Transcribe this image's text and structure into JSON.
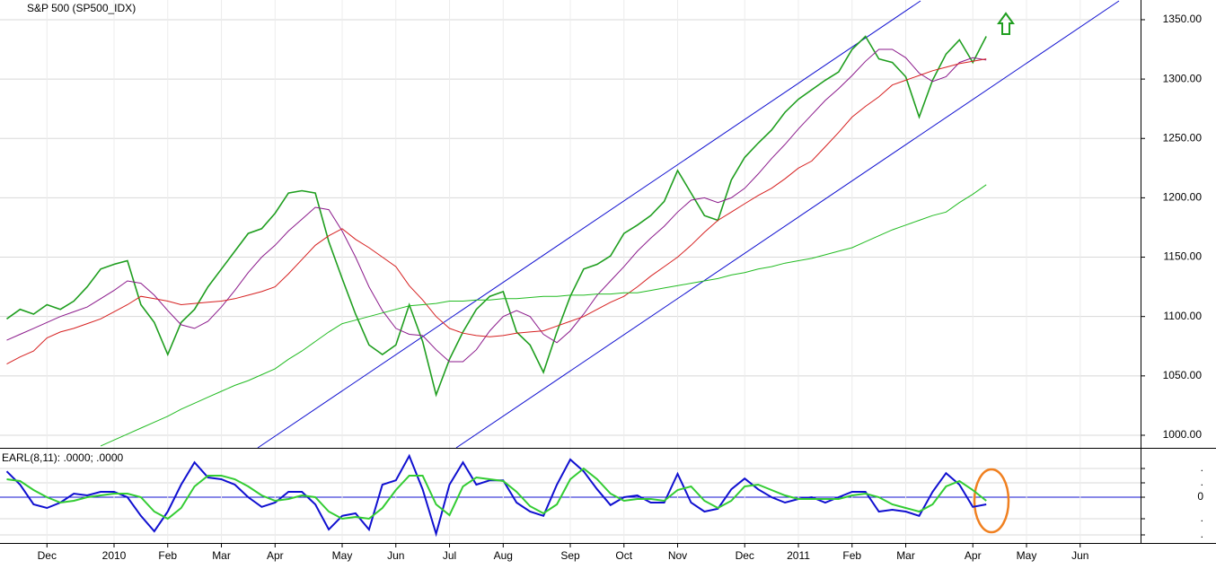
{
  "chart_data": [
    {
      "type": "line",
      "title": "S&P 500 (SP500_IDX)",
      "ylim": [
        989.4,
        1366.6
      ],
      "yticks": [
        {
          "value": 1000,
          "label": "1000.00"
        },
        {
          "value": 1050,
          "label": "1050.00"
        },
        {
          "value": 1100,
          "label": "1100.00"
        },
        {
          "value": 1150,
          "label": "1150.00"
        },
        {
          "value": 1200,
          "label": "1200.00"
        },
        {
          "value": 1250,
          "label": "1250.00"
        },
        {
          "value": 1300,
          "label": "1300.00"
        },
        {
          "value": 1350,
          "label": "1350.00"
        }
      ],
      "grid": true,
      "series": [
        {
          "color": "#1f9e1f",
          "values": [
            1098,
            1106,
            1102,
            1110,
            1106,
            1113,
            1125,
            1140,
            1144,
            1147,
            1110,
            1095,
            1068,
            1095,
            1106,
            1125,
            1140,
            1155,
            1170,
            1174,
            1187,
            1204,
            1206,
            1204,
            1163,
            1132,
            1102,
            1076,
            1068,
            1076,
            1110,
            1079,
            1034,
            1064,
            1087,
            1106,
            1117,
            1121,
            1087,
            1076,
            1053,
            1087,
            1117,
            1140,
            1144,
            1151,
            1170,
            1177,
            1185,
            1197,
            1223,
            1204,
            1185,
            1181,
            1215,
            1234,
            1246,
            1257,
            1272,
            1283,
            1291,
            1299,
            1306,
            1325,
            1336,
            1317,
            1314,
            1302,
            1268,
            1299,
            1321,
            1333,
            1314,
            1336,
            null,
            null,
            null,
            null,
            null,
            null,
            null,
            null,
            null,
            null,
            null
          ]
        },
        {
          "color": "#8b1a8b",
          "values": [
            1080,
            1085,
            1090,
            1095,
            1100,
            1104,
            1108,
            1115,
            1122,
            1130,
            1128,
            1118,
            1105,
            1093,
            1090,
            1096,
            1108,
            1122,
            1137,
            1150,
            1160,
            1172,
            1182,
            1192,
            1190,
            1172,
            1150,
            1125,
            1105,
            1090,
            1085,
            1084,
            1072,
            1062,
            1062,
            1072,
            1088,
            1100,
            1105,
            1100,
            1085,
            1078,
            1088,
            1102,
            1118,
            1130,
            1142,
            1155,
            1166,
            1176,
            1188,
            1198,
            1200,
            1196,
            1200,
            1208,
            1220,
            1233,
            1245,
            1258,
            1270,
            1282,
            1292,
            1303,
            1315,
            1325,
            1325,
            1318,
            1305,
            1298,
            1302,
            1314,
            1318,
            1316,
            null,
            null,
            null,
            null,
            null,
            null,
            null,
            null,
            null,
            null,
            null
          ]
        },
        {
          "color": "#d62020",
          "values": [
            1060,
            1066,
            1071,
            1082,
            1087,
            1090,
            1094,
            1098,
            1104,
            1110,
            1117,
            1115,
            1113,
            1110,
            1111,
            1112,
            1113,
            1115,
            1118,
            1121,
            1125,
            1136,
            1148,
            1160,
            1168,
            1174,
            1165,
            1158,
            1150,
            1142,
            1126,
            1114,
            1100,
            1090,
            1086,
            1084,
            1083,
            1084,
            1086,
            1087,
            1088,
            1092,
            1096,
            1100,
            1106,
            1112,
            1117,
            1125,
            1134,
            1142,
            1150,
            1160,
            1171,
            1181,
            1188,
            1195,
            1202,
            1208,
            1216,
            1225,
            1231,
            1243,
            1255,
            1268,
            1277,
            1285,
            1295,
            1299,
            1303,
            1307,
            1310,
            1313,
            1315,
            1317,
            null,
            null,
            null,
            null,
            null,
            null,
            null,
            null,
            null,
            null,
            null
          ]
        },
        {
          "color": "#22bb22",
          "values": [
            null,
            null,
            null,
            null,
            null,
            null,
            null,
            991,
            996,
            1001,
            1006,
            1011,
            1016,
            1022,
            1027,
            1032,
            1037,
            1042,
            1046,
            1051,
            1056,
            1064,
            1071,
            1079,
            1087,
            1094,
            1097,
            1100,
            1103,
            1106,
            1109,
            1110,
            1111,
            1113,
            1113,
            1114,
            1114,
            1115,
            1115,
            1116,
            1117,
            1117,
            1118,
            1118,
            1119,
            1119,
            1120,
            1120,
            1122,
            1124,
            1126,
            1128,
            1130,
            1132,
            1135,
            1137,
            1140,
            1142,
            1145,
            1147,
            1149,
            1152,
            1155,
            1158,
            1163,
            1168,
            1173,
            1177,
            1181,
            1185,
            1188,
            1196,
            1203,
            1211,
            null,
            null,
            null,
            null,
            null,
            null,
            null,
            null,
            null,
            null,
            null
          ]
        }
      ]
    },
    {
      "type": "line",
      "title": "EARL(8,11): .0000; .0000",
      "ylim": [
        -1.275,
        1.35
      ],
      "yticks": [
        {
          "value": 0.8,
          "label": "."
        },
        {
          "value": 0.4,
          "label": "."
        },
        0,
        {
          "value": -0.6,
          "label": "."
        },
        {
          "value": -1.05,
          "label": "."
        }
      ],
      "grid": true,
      "categories": [
        null,
        null,
        null,
        "Dec",
        null,
        null,
        null,
        null,
        "2010",
        null,
        null,
        null,
        "Feb",
        null,
        null,
        null,
        "Mar",
        null,
        null,
        null,
        "Apr",
        null,
        null,
        null,
        null,
        "May",
        null,
        null,
        null,
        "Jun",
        null,
        null,
        null,
        "Jul",
        null,
        null,
        null,
        "Aug",
        null,
        null,
        null,
        null,
        "Sep",
        null,
        null,
        null,
        "Oct",
        null,
        null,
        null,
        "Nov",
        null,
        null,
        null,
        null,
        "Dec",
        null,
        null,
        null,
        "2011",
        null,
        null,
        null,
        "Feb",
        null,
        null,
        null,
        "Mar",
        null,
        null,
        null,
        null,
        "Apr",
        null,
        null,
        null,
        "May",
        null,
        null,
        null,
        "Jun",
        null,
        null,
        null,
        null
      ],
      "series": [
        {
          "color": "#1010d0",
          "values": [
            0.72,
            0.35,
            -0.2,
            -0.3,
            -0.15,
            0.1,
            0.05,
            0.15,
            0.15,
            0,
            -0.52,
            -0.95,
            -0.4,
            0.35,
            0.97,
            0.55,
            0.5,
            0.35,
            0,
            -0.27,
            -0.15,
            0.15,
            0.15,
            -0.2,
            -0.9,
            -0.52,
            -0.45,
            -0.9,
            0.35,
            0.47,
            1.15,
            0.22,
            -1.02,
            0.35,
            0.97,
            0.35,
            0.47,
            0.47,
            -0.15,
            -0.4,
            -0.52,
            0.35,
            1.05,
            0.72,
            0.22,
            -0.22,
            0,
            0.05,
            -0.15,
            -0.15,
            0.65,
            -0.15,
            -0.4,
            -0.32,
            0.22,
            0.52,
            0.22,
            0,
            -0.15,
            -0.05,
            0,
            -0.15,
            0,
            0.15,
            0.15,
            -0.4,
            -0.35,
            -0.4,
            -0.52,
            0.15,
            0.67,
            0.35,
            -0.27,
            -0.2,
            null,
            null,
            null,
            null,
            null,
            null,
            null,
            null,
            null,
            null,
            null
          ]
        },
        {
          "color": "#33cc33",
          "values": [
            0.5,
            0.45,
            0.2,
            0,
            -0.15,
            -0.1,
            0,
            0.05,
            0.1,
            0.1,
            0,
            -0.4,
            -0.6,
            -0.3,
            0.3,
            0.6,
            0.6,
            0.5,
            0.3,
            0.05,
            -0.1,
            -0.05,
            0.05,
            0,
            -0.4,
            -0.6,
            -0.55,
            -0.6,
            -0.3,
            0.2,
            0.6,
            0.6,
            -0.2,
            -0.5,
            0.3,
            0.55,
            0.5,
            0.45,
            0.15,
            -0.25,
            -0.45,
            -0.2,
            0.5,
            0.8,
            0.5,
            0.1,
            -0.1,
            -0.05,
            -0.05,
            -0.1,
            0.2,
            0.3,
            -0.1,
            -0.3,
            -0.1,
            0.3,
            0.35,
            0.2,
            0.05,
            -0.05,
            -0.05,
            -0.05,
            -0.05,
            0.05,
            0.1,
            0,
            -0.2,
            -0.3,
            -0.4,
            -0.2,
            0.3,
            0.45,
            0.2,
            -0.1,
            null,
            null,
            null,
            null,
            null,
            null,
            null,
            null,
            null,
            null,
            null
          ]
        }
      ]
    }
  ]
}
